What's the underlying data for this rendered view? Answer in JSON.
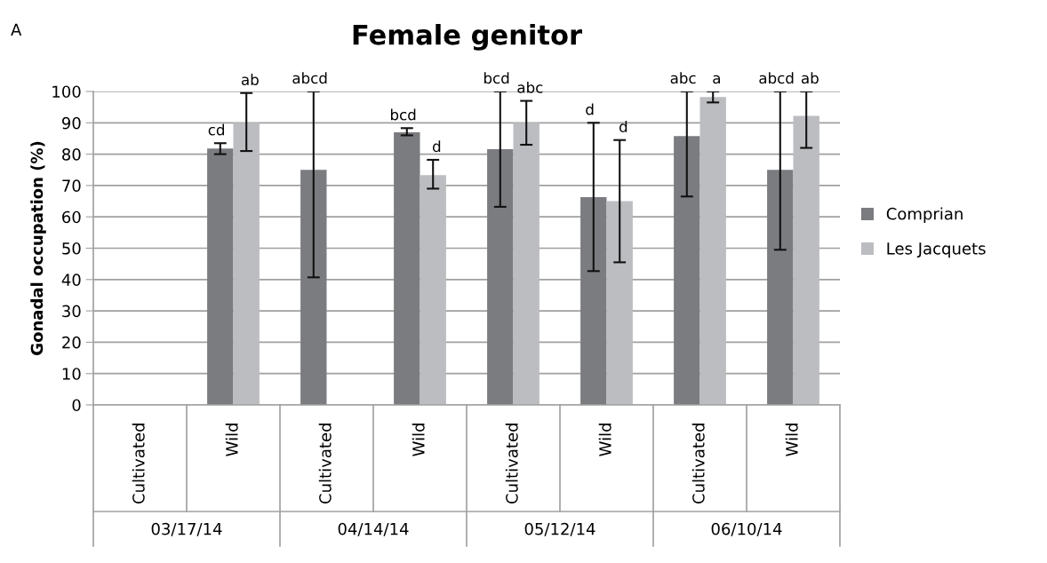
{
  "chart_data": {
    "type": "bar",
    "title": "Female genitor",
    "ylabel": "Gonadal occupation (%)",
    "categories": [
      "Cultivated",
      "Wild",
      "Cultivated",
      "Wild",
      "Cultivated",
      "Wild",
      "Cultivated",
      "Wild"
    ],
    "series": [
      {
        "name": "Comprian",
        "color": "#7b7c80",
        "values": [
          null,
          81.8,
          75,
          87,
          81.6,
          66.3,
          85.8,
          75
        ],
        "errors": [
          null,
          [
            80,
            83.5
          ],
          [
            40.7,
            100
          ],
          [
            86,
            88.3
          ],
          [
            63.2,
            100
          ],
          [
            42.7,
            90
          ],
          [
            66.5,
            100
          ],
          [
            49.5,
            100
          ]
        ]
      },
      {
        "name": "Les Jacquets",
        "color": "#bcbdc1",
        "values": [
          null,
          90,
          null,
          73.3,
          90,
          65,
          98.2,
          92.2
        ],
        "errors": [
          null,
          [
            81,
            99.5
          ],
          null,
          [
            69,
            78.2
          ],
          [
            83,
            97
          ],
          [
            45.5,
            84.5
          ],
          [
            96.5,
            100
          ],
          [
            82,
            100
          ]
        ]
      }
    ],
    "annotations": [
      "A",
      "03/17/14",
      "04/14/14",
      "05/12/14",
      "06/10/14",
      "cd",
      "ab",
      "abcd",
      "bcd",
      "d",
      "bcd",
      "abc",
      "d",
      "d",
      "abc",
      "a",
      "abcd",
      "ab"
    ],
    "ylim": [
      0,
      100
    ],
    "yticks": [
      0,
      10,
      20,
      30,
      40,
      50,
      60,
      70,
      80,
      90,
      100
    ],
    "grid": "y",
    "legend": "right"
  }
}
